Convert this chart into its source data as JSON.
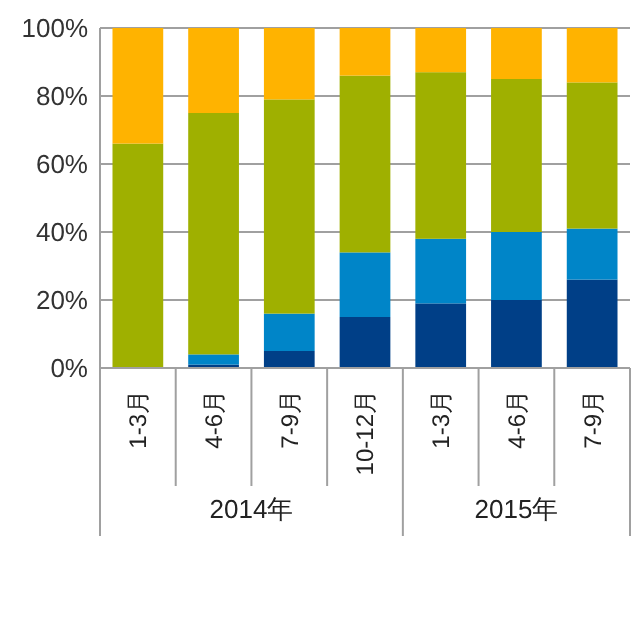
{
  "chart_data": {
    "type": "bar",
    "stacked": true,
    "categories": [
      "1-3月",
      "4-6月",
      "7-9月",
      "10-12月",
      "1-3月",
      "4-6月",
      "7-9月"
    ],
    "series": [
      {
        "color": "#003f87",
        "values": [
          0,
          1,
          5,
          15,
          19,
          20,
          26
        ]
      },
      {
        "color": "#0085c8",
        "values": [
          0,
          3,
          11,
          19,
          19,
          20,
          15
        ]
      },
      {
        "color": "#9fb000",
        "values": [
          66,
          71,
          63,
          52,
          49,
          45,
          43
        ]
      },
      {
        "color": "#ffb300",
        "values": [
          34,
          25,
          21,
          14,
          13,
          15,
          16
        ]
      }
    ],
    "ylim": [
      0,
      100
    ],
    "yticks": [
      {
        "value": 0,
        "label": "0%"
      },
      {
        "value": 20,
        "label": "20%"
      },
      {
        "value": 40,
        "label": "40%"
      },
      {
        "value": 60,
        "label": "60%"
      },
      {
        "value": 80,
        "label": "80%"
      },
      {
        "value": 100,
        "label": "100%"
      }
    ],
    "grid": "y",
    "annotations": [
      "2014年",
      "2015年"
    ]
  }
}
